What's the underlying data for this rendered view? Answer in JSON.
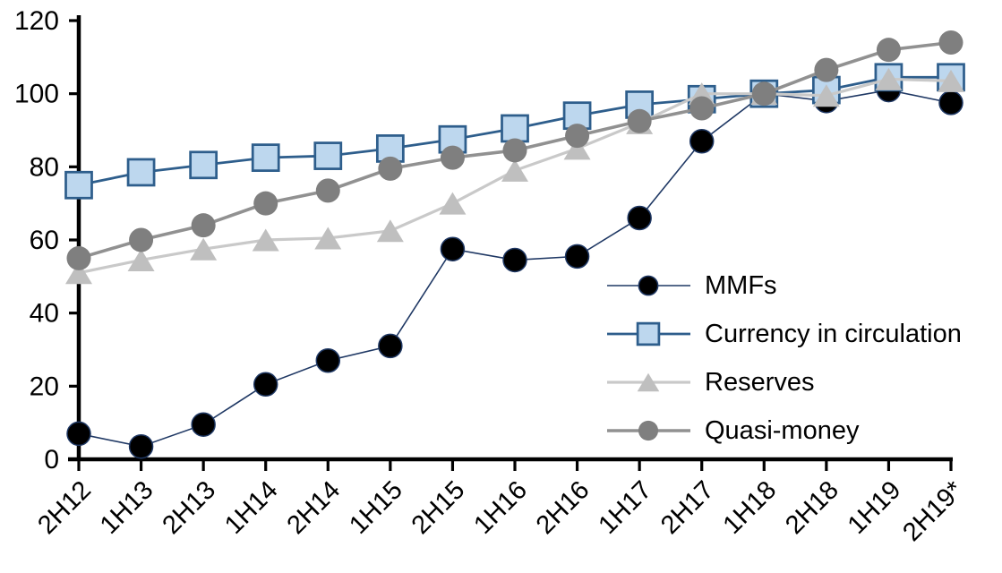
{
  "chart_data": {
    "type": "line",
    "title": "",
    "xlabel": "",
    "ylabel": "",
    "categories": [
      "2H12",
      "1H13",
      "2H13",
      "1H14",
      "2H14",
      "1H15",
      "2H15",
      "1H16",
      "2H16",
      "1H17",
      "2H17",
      "1H18",
      "2H18",
      "1H19",
      "2H19*"
    ],
    "series": [
      {
        "name": "MMFs",
        "marker": "circle",
        "marker_size": 26,
        "marker_color": "#000000",
        "marker_edge": "#1F3864",
        "edge_width": 1.5,
        "line_color": "#1F3864",
        "line_width": 1.6,
        "values": [
          7,
          3.5,
          9.5,
          20.5,
          27,
          31,
          57.5,
          54.5,
          55.5,
          66,
          87,
          100,
          98,
          101,
          97.5
        ]
      },
      {
        "name": "Currency in circulation",
        "marker": "square",
        "marker_size": 29,
        "marker_color": "#BDD7EE",
        "marker_edge": "#2E5E8C",
        "edge_width": 2.75,
        "line_color": "#2E5E8C",
        "line_width": 2.8,
        "values": [
          75,
          78.5,
          80.5,
          82.5,
          83,
          85,
          87.5,
          90.5,
          94,
          97,
          98.5,
          100,
          101,
          104.5,
          104.5
        ]
      },
      {
        "name": "Reserves",
        "marker": "triangle",
        "marker_size": 30,
        "marker_color": "#BFBFBF",
        "marker_edge": "#BFBFBF",
        "edge_width": 0,
        "line_color": "#C9C9C9",
        "line_width": 3.2,
        "values": [
          51,
          54.5,
          57.5,
          60,
          60.5,
          62.5,
          70,
          79,
          85,
          92,
          100,
          100,
          99.5,
          104,
          103.5
        ]
      },
      {
        "name": "Quasi-money",
        "marker": "circle",
        "marker_size": 27,
        "marker_color": "#7F7F7F",
        "marker_edge": "#7F7F7F",
        "edge_width": 0,
        "line_color": "#919191",
        "line_width": 3.6,
        "values": [
          55,
          60,
          64,
          70,
          73.5,
          79.5,
          82.5,
          84.5,
          88.5,
          92.5,
          96,
          100,
          106.5,
          112,
          114
        ]
      }
    ],
    "ylim": [
      0,
      120
    ],
    "yticks": [
      0,
      20,
      40,
      60,
      80,
      100,
      120
    ],
    "x_tick_rotation": -45,
    "grid": false,
    "legend_position": "inside-right",
    "axis_color": "#000000",
    "background_color": "#FFFFFF"
  }
}
